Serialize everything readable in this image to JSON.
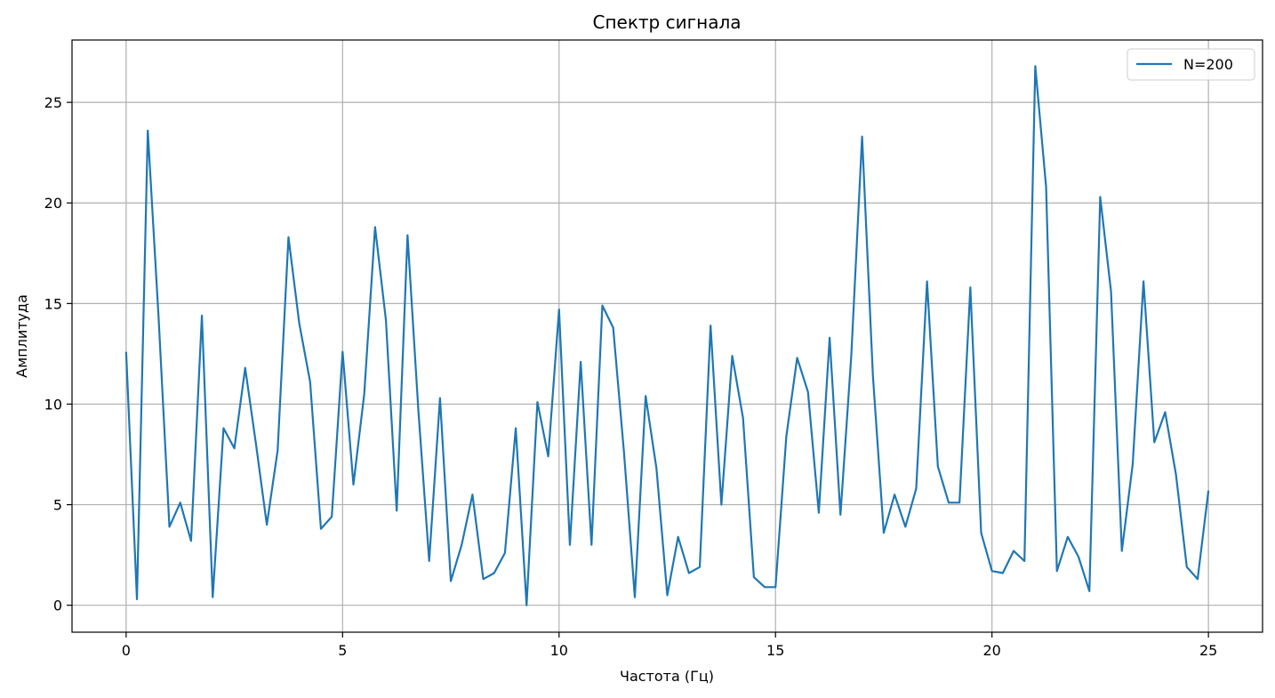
{
  "chart_data": {
    "type": "line",
    "title": "Спектр сигнала",
    "xlabel": "Частота (Гц)",
    "ylabel": "Амплитуда",
    "xlim": [
      -1.25,
      26.25
    ],
    "ylim": [
      -1.34,
      28.1
    ],
    "xticks": [
      0,
      5,
      10,
      15,
      20,
      25
    ],
    "yticks": [
      0,
      5,
      10,
      15,
      20,
      25
    ],
    "grid": true,
    "legend_position": "top-right",
    "series_color": "#1f77b4",
    "series": [
      {
        "name": "N=200",
        "x": [
          0,
          0.25,
          0.5,
          0.75,
          1,
          1.25,
          1.5,
          1.75,
          2,
          2.25,
          2.5,
          2.75,
          3,
          3.25,
          3.5,
          3.75,
          4,
          4.25,
          4.5,
          4.75,
          5,
          5.25,
          5.5,
          5.75,
          6,
          6.25,
          6.5,
          6.75,
          7,
          7.25,
          7.5,
          7.75,
          8,
          8.25,
          8.5,
          8.75,
          9,
          9.25,
          9.5,
          9.75,
          10,
          10.25,
          10.5,
          10.75,
          11,
          11.25,
          11.5,
          11.75,
          12,
          12.25,
          12.5,
          12.75,
          13,
          13.25,
          13.5,
          13.75,
          14,
          14.25,
          14.5,
          14.75,
          15,
          15.25,
          15.5,
          15.75,
          16,
          16.25,
          16.5,
          16.75,
          17,
          17.25,
          17.5,
          17.75,
          18,
          18.25,
          18.5,
          18.75,
          19,
          19.25,
          19.5,
          19.75,
          20,
          20.25,
          20.5,
          20.75,
          21,
          21.25,
          21.5,
          21.75,
          22,
          22.25,
          22.5,
          22.75,
          23,
          23.25,
          23.5,
          23.75,
          24,
          24.25,
          24.5,
          24.75,
          25
        ],
        "values": [
          12.6,
          0.3,
          23.6,
          14.3,
          3.9,
          5.1,
          3.2,
          14.4,
          0.4,
          8.8,
          7.8,
          11.8,
          8.0,
          4.0,
          7.7,
          18.3,
          14.0,
          11.1,
          3.8,
          4.4,
          12.6,
          6.0,
          10.5,
          18.8,
          14.2,
          4.7,
          18.4,
          9.7,
          2.2,
          10.3,
          1.2,
          3.0,
          5.5,
          1.3,
          1.6,
          2.6,
          8.8,
          0.0,
          10.1,
          7.4,
          14.7,
          3.0,
          12.1,
          3.0,
          14.9,
          13.8,
          7.6,
          0.4,
          10.4,
          6.8,
          0.5,
          3.4,
          1.6,
          1.9,
          13.9,
          5.0,
          12.4,
          9.3,
          1.4,
          0.9,
          0.9,
          8.4,
          12.3,
          10.6,
          4.6,
          13.3,
          4.5,
          12.4,
          23.3,
          11.4,
          3.6,
          5.5,
          3.9,
          5.8,
          16.1,
          6.9,
          5.1,
          5.1,
          15.8,
          3.6,
          1.7,
          1.6,
          2.7,
          2.2,
          26.8,
          20.8,
          1.7,
          3.4,
          2.4,
          0.7,
          20.3,
          15.6,
          2.7,
          7.0,
          16.1,
          8.1,
          9.6,
          6.5,
          1.9,
          1.3,
          5.7
        ]
      }
    ]
  }
}
